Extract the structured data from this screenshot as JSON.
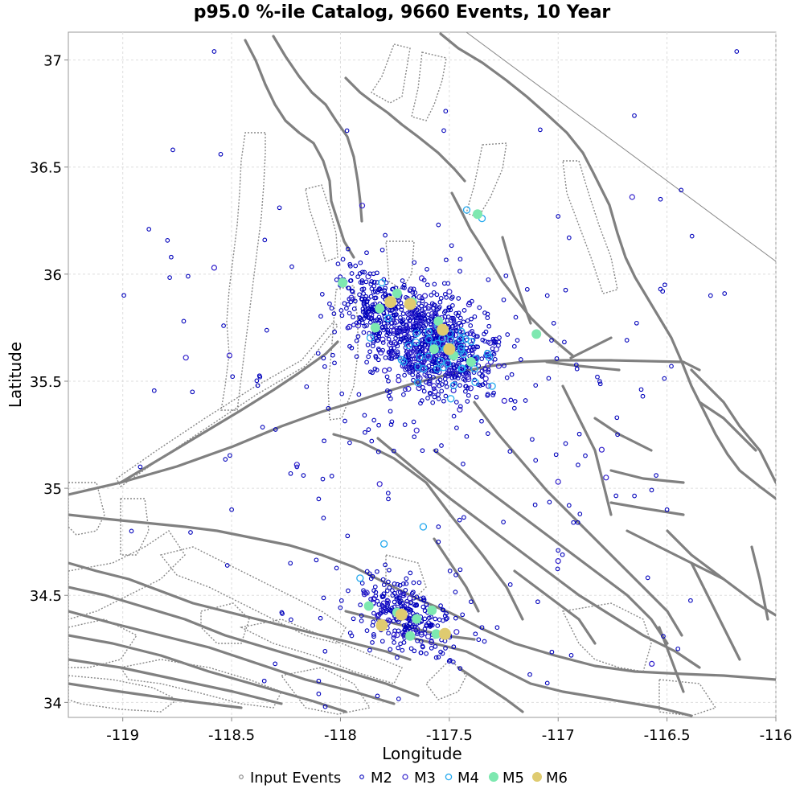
{
  "chart_data": {
    "type": "scatter",
    "title": "p95.0 %-ile Catalog, 9660 Events, 10 Year",
    "xlabel": "Longitude",
    "ylabel": "Latitude",
    "xlim": [
      -119.25,
      -116.0
    ],
    "ylim": [
      33.93,
      37.13
    ],
    "grid": true,
    "legend_position": "bottom",
    "x_ticks": [
      -119,
      -118.5,
      -118,
      -117.5,
      -117,
      -116.5,
      -116
    ],
    "x_tick_labels": [
      "-119",
      "-118.5",
      "-118",
      "-117.5",
      "-117",
      "-116.5",
      "-116"
    ],
    "y_ticks": [
      34,
      34.5,
      35,
      35.5,
      36,
      36.5,
      37
    ],
    "y_tick_labels": [
      "34",
      "34.5",
      "35",
      "35.5",
      "36",
      "36.5",
      "37"
    ],
    "legend": [
      {
        "label": "Input Events",
        "marker": "small-circle",
        "color": "#808080"
      },
      {
        "label": "M2",
        "marker": "small-circle",
        "color": "#0000bb"
      },
      {
        "label": "M3",
        "marker": "circle",
        "color": "#3322cc"
      },
      {
        "label": "M4",
        "marker": "circle",
        "color": "#22a8ee"
      },
      {
        "label": "M5",
        "marker": "filled-circle",
        "color": "#7ee8b0"
      },
      {
        "label": "M6",
        "marker": "filled-circle",
        "color": "#dfcb70"
      }
    ],
    "clusters": [
      {
        "series": "M2",
        "cx": -117.58,
        "cy": 35.67,
        "sx": 0.16,
        "sy": 0.11,
        "n": 700
      },
      {
        "series": "M2",
        "cx": -117.85,
        "cy": 35.86,
        "sx": 0.09,
        "sy": 0.07,
        "n": 180
      },
      {
        "series": "M2",
        "cx": -117.7,
        "cy": 34.4,
        "sx": 0.13,
        "sy": 0.07,
        "n": 260
      },
      {
        "series": "M2",
        "cx": -117.6,
        "cy": 35.4,
        "sx": 0.55,
        "sy": 0.5,
        "n": 160
      },
      {
        "series": "M3",
        "cx": -117.58,
        "cy": 35.66,
        "sx": 0.14,
        "sy": 0.1,
        "n": 140
      },
      {
        "series": "M3",
        "cx": -117.72,
        "cy": 34.4,
        "sx": 0.12,
        "sy": 0.06,
        "n": 30
      },
      {
        "series": "M4",
        "cx": -117.56,
        "cy": 35.66,
        "sx": 0.11,
        "sy": 0.08,
        "n": 45
      }
    ],
    "series": [
      {
        "name": "M2",
        "color": "#0000bb",
        "x": [
          -118.77,
          -118.55,
          -118.58,
          -118.88,
          -117.97,
          -118.28,
          -118.7,
          -116.18,
          -116.65,
          -116.53,
          -116.3,
          -116.95,
          -116.48,
          -116.82,
          -116.73,
          -116.55,
          -116.45,
          -116.5,
          -116.95,
          -118.37,
          -118.2,
          -118.17,
          -118.23,
          -117.22,
          -117.28,
          -116.94,
          -117.13,
          -117.05,
          -116.98,
          -117.0,
          -116.93,
          -116.9,
          -118.5,
          -118.52,
          -118.38,
          -118.72,
          -118.92,
          -117.88,
          -118.1,
          -117.78,
          -117.55,
          -117.45,
          -117.4,
          -117.55,
          -118.35,
          -118.1,
          -118.1,
          -118.07,
          -117.35,
          -117.38,
          -117.83,
          -117.55,
          -117.45,
          -118.68,
          -118.96,
          -118.3,
          -117.0,
          -117.05,
          -117.25,
          -117.15,
          -116.51,
          -116.52,
          -116.53,
          -117.6,
          -118.27
        ],
        "y": [
          36.58,
          36.56,
          37.04,
          36.21,
          36.67,
          36.31,
          35.99,
          37.04,
          36.74,
          36.35,
          35.9,
          36.17,
          35.57,
          35.52,
          35.33,
          35.06,
          34.25,
          34.9,
          34.92,
          35.52,
          35.1,
          35.06,
          34.65,
          34.55,
          34.35,
          34.22,
          34.13,
          34.09,
          34.69,
          34.71,
          34.84,
          34.88,
          34.9,
          34.64,
          35.48,
          35.78,
          35.1,
          36.1,
          34.95,
          34.95,
          34.82,
          34.62,
          34.47,
          34.75,
          34.1,
          34.1,
          34.04,
          33.98,
          34.35,
          34.32,
          34.03,
          36.23,
          36.07,
          35.45,
          34.8,
          34.18,
          36.27,
          35.9,
          35.88,
          35.41,
          35.95,
          35.92,
          35.93,
          35.95,
          34.42
        ]
      },
      {
        "name": "M3",
        "color": "#3322cc",
        "x": [
          -118.58,
          -118.51,
          -117.65,
          -116.78,
          -117.95,
          -118.71,
          -116.66,
          -116.8,
          -117.0,
          -117.9,
          -118.2,
          -116.57,
          -117.82,
          -117.0
        ],
        "y": [
          36.03,
          35.62,
          35.27,
          35.05,
          35.89,
          35.61,
          36.36,
          35.18,
          34.66,
          36.32,
          35.11,
          34.18,
          35.02,
          35.03
        ]
      },
      {
        "name": "M4",
        "color": "#22a8ee",
        "x": [
          -117.91,
          -117.35,
          -117.42,
          -117.81,
          -117.8,
          -117.62,
          -117.48,
          -117.72,
          -117.44
        ],
        "y": [
          34.58,
          36.26,
          36.3,
          35.96,
          34.74,
          34.82,
          35.48,
          35.6,
          35.56
        ]
      },
      {
        "name": "M5",
        "color": "#7ee8b0",
        "x": [
          -117.99,
          -117.67,
          -117.82,
          -117.74,
          -117.55,
          -117.48,
          -117.57,
          -117.37,
          -117.1,
          -117.84,
          -117.74,
          -117.65,
          -117.58,
          -117.56,
          -117.4,
          -117.87,
          -117.68
        ],
        "y": [
          35.96,
          35.87,
          35.84,
          35.91,
          35.78,
          35.62,
          35.65,
          36.28,
          35.72,
          35.75,
          34.42,
          34.39,
          34.43,
          34.32,
          35.59,
          34.45,
          34.31
        ]
      },
      {
        "name": "M6",
        "color": "#dfcb70",
        "x": [
          -117.77,
          -117.68,
          -117.53,
          -117.5,
          -117.81,
          -117.72,
          -117.52
        ],
        "y": [
          35.87,
          35.86,
          35.74,
          35.65,
          34.36,
          34.41,
          34.32
        ]
      }
    ]
  }
}
